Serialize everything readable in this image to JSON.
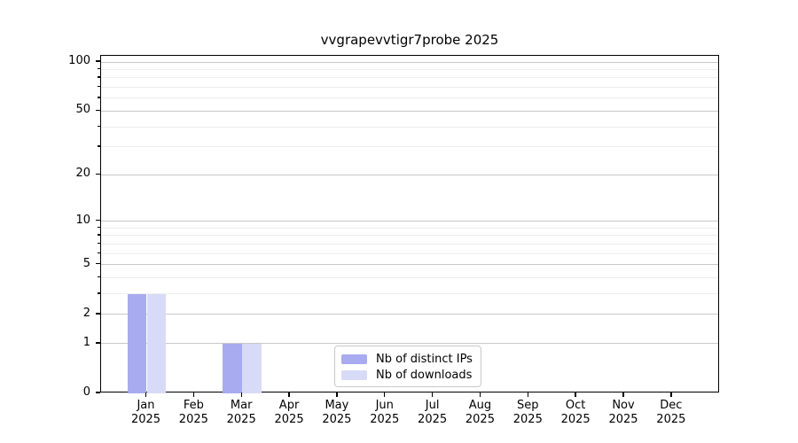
{
  "chart_data": {
    "type": "bar",
    "title": "vvgrapevvtigr7probe 2025",
    "categories": [
      "Jan",
      "Feb",
      "Mar",
      "Apr",
      "May",
      "Jun",
      "Jul",
      "Aug",
      "Sep",
      "Oct",
      "Nov",
      "Dec"
    ],
    "category_year": "2025",
    "series": [
      {
        "name": "Nb of distinct IPs",
        "color": "#a8abf0",
        "values": [
          3,
          0,
          1,
          0,
          0,
          0,
          0,
          0,
          0,
          0,
          0,
          0
        ]
      },
      {
        "name": "Nb of downloads",
        "color": "#d8dbf7",
        "values": [
          3,
          0,
          1,
          0,
          0,
          0,
          0,
          0,
          0,
          0,
          0,
          0
        ]
      }
    ],
    "y_axis": {
      "scale": "log1p",
      "ticks": [
        0,
        1,
        2,
        5,
        10,
        20,
        50,
        100
      ],
      "minor_ticks": [
        3,
        4,
        6,
        7,
        8,
        9,
        30,
        40,
        60,
        70,
        80,
        90
      ],
      "range": [
        0,
        110
      ]
    },
    "grid": "horizontal",
    "legend_position": "lower-center"
  },
  "colors": {
    "background": "#ffffff",
    "spine": "#000000",
    "major_grid": "#c8c8c8",
    "minor_grid": "#ededed",
    "legend_border": "#c9c9c9",
    "text": "#000000"
  }
}
